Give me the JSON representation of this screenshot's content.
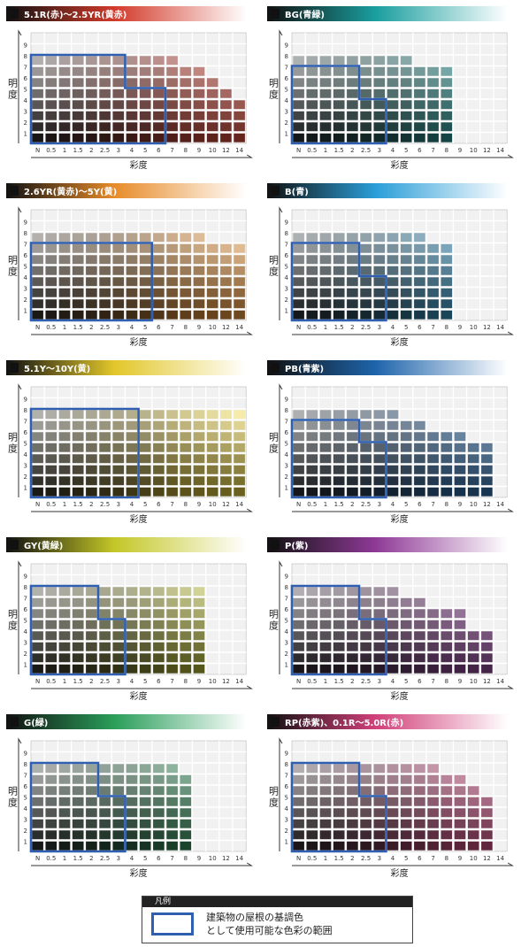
{
  "axis_labels": {
    "y": [
      "明",
      "度"
    ],
    "x": "彩度"
  },
  "chroma_ticks": [
    "N",
    "0.5",
    "1",
    "1.5",
    "2",
    "2.5",
    "3",
    "4",
    "5",
    "6",
    "7",
    "8",
    "9",
    "10",
    "12",
    "14"
  ],
  "value_ticks": [
    "1",
    "2",
    "3",
    "4",
    "5",
    "6",
    "7",
    "8",
    "9"
  ],
  "legend": {
    "heading": "凡例",
    "line1": "建築物の屋根の基調色",
    "line2": "として使用可能な色彩の範囲",
    "outline_color": "#2f5fb0"
  },
  "chart_data": [
    {
      "type": "heatmap",
      "title": "5.1R(赤)～2.5YR(黄赤)",
      "hue_color": "#d23a2a",
      "ceil": [
        8,
        8,
        8,
        8,
        8,
        8,
        8,
        8,
        8,
        8,
        8,
        7,
        7,
        6,
        5,
        4
      ],
      "range": [
        8,
        8,
        8,
        8,
        8,
        8,
        8,
        5,
        5,
        5
      ]
    },
    {
      "type": "heatmap",
      "title": "BG(青緑)",
      "hue_color": "#1a9e9e",
      "ceil": [
        8,
        8,
        8,
        8,
        8,
        8,
        8,
        8,
        8,
        7,
        7,
        7,
        0,
        0,
        0,
        0
      ],
      "range": [
        7,
        7,
        7,
        7,
        7,
        4,
        4,
        0,
        0,
        0
      ]
    },
    {
      "type": "heatmap",
      "title": "2.6YR(黄赤)～5Y(黄)",
      "hue_color": "#e88c2a",
      "ceil": [
        8,
        8,
        8,
        8,
        8,
        8,
        8,
        8,
        8,
        8,
        8,
        8,
        8,
        7,
        7,
        7
      ],
      "range": [
        7,
        7,
        7,
        7,
        7,
        7,
        7,
        7,
        7,
        0
      ]
    },
    {
      "type": "heatmap",
      "title": "B(青)",
      "hue_color": "#2a9ed8",
      "ceil": [
        8,
        8,
        8,
        8,
        8,
        8,
        8,
        8,
        8,
        8,
        7,
        7,
        0,
        0,
        0,
        0
      ],
      "range": [
        7,
        7,
        7,
        7,
        7,
        4,
        4,
        0,
        0,
        0
      ]
    },
    {
      "type": "heatmap",
      "title": "5.1Y～10Y(黄)",
      "hue_color": "#e2c72a",
      "ceil": [
        8,
        8,
        8,
        8,
        8,
        8,
        8,
        8,
        8,
        8,
        8,
        8,
        8,
        8,
        8,
        8
      ],
      "range": [
        8,
        8,
        8,
        8,
        8,
        8,
        8,
        8,
        0,
        0
      ]
    },
    {
      "type": "heatmap",
      "title": "PB(青紫)",
      "hue_color": "#1e64ab",
      "ceil": [
        8,
        8,
        8,
        8,
        8,
        8,
        8,
        8,
        7,
        7,
        6,
        6,
        6,
        5,
        5,
        0
      ],
      "range": [
        7,
        7,
        7,
        7,
        7,
        5,
        5,
        0,
        0,
        0
      ]
    },
    {
      "type": "heatmap",
      "title": "GY(黄緑)",
      "hue_color": "#c4c727",
      "ceil": [
        8,
        8,
        8,
        8,
        8,
        8,
        8,
        8,
        8,
        8,
        8,
        8,
        8,
        0,
        0,
        0
      ],
      "range": [
        8,
        8,
        8,
        8,
        8,
        5,
        5,
        0,
        0,
        0
      ]
    },
    {
      "type": "heatmap",
      "title": "P(紫)",
      "hue_color": "#8e3a96",
      "ceil": [
        8,
        8,
        8,
        8,
        8,
        8,
        8,
        8,
        7,
        7,
        6,
        6,
        6,
        4,
        4,
        0
      ],
      "range": [
        8,
        8,
        8,
        8,
        8,
        5,
        5,
        0,
        0,
        0
      ]
    },
    {
      "type": "heatmap",
      "title": "G(緑)",
      "hue_color": "#2a9e5a",
      "ceil": [
        8,
        8,
        8,
        8,
        8,
        8,
        8,
        8,
        8,
        8,
        8,
        7,
        0,
        0,
        0,
        0
      ],
      "range": [
        8,
        8,
        8,
        8,
        8,
        5,
        5,
        0,
        0,
        0
      ]
    },
    {
      "type": "heatmap",
      "title": "RP(赤紫)、0.1R～5.0R(赤)",
      "hue_color": "#d1407a",
      "ceil": [
        8,
        8,
        8,
        8,
        8,
        8,
        8,
        8,
        8,
        8,
        8,
        7,
        7,
        6,
        5,
        0
      ],
      "range": [
        8,
        8,
        8,
        8,
        8,
        5,
        5,
        0,
        0,
        0
      ]
    }
  ]
}
